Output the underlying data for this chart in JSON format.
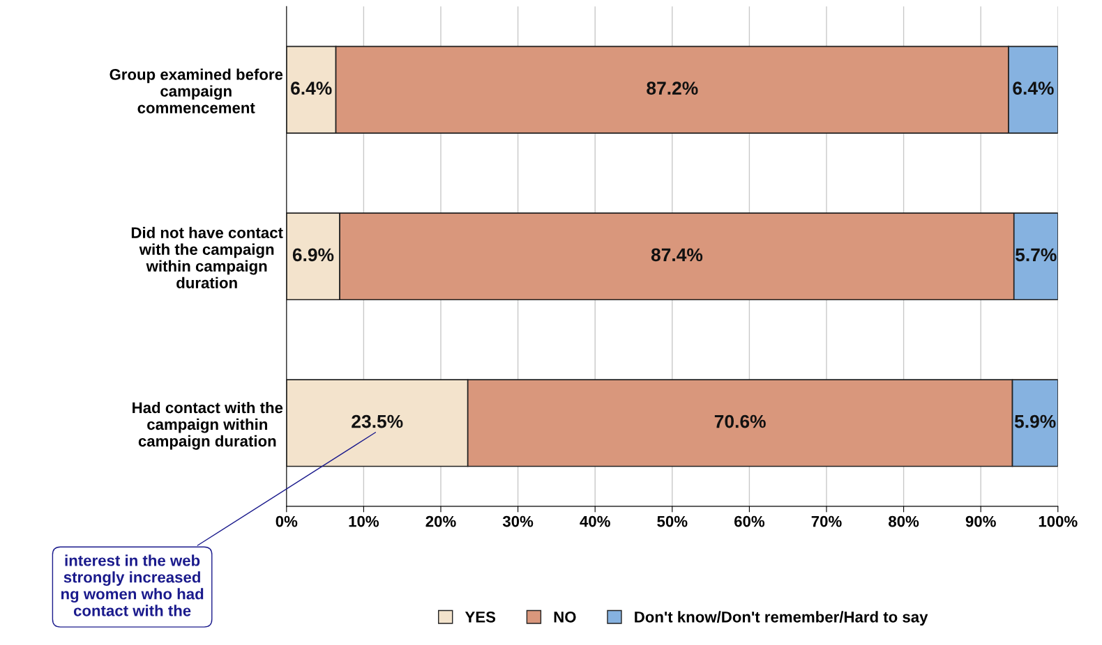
{
  "chart_data": {
    "type": "bar",
    "orientation": "horizontal",
    "stacked": true,
    "categories": [
      "Group examined before\ncampaign\ncommencement",
      "Did not have contact\nwith the campaign\nwithin campaign\nduration",
      "Had contact with the\ncampaign within\ncampaign duration"
    ],
    "series": [
      {
        "name": "YES",
        "color": "#f3e3cc",
        "values": [
          6.4,
          6.9,
          23.5
        ],
        "value_labels": [
          "6.4%",
          "6.9%",
          "23.5%"
        ]
      },
      {
        "name": "NO",
        "color": "#d9977c",
        "values": [
          87.2,
          87.4,
          70.6
        ],
        "value_labels": [
          "87.2%",
          "87.4%",
          "70.6%"
        ]
      },
      {
        "name": "Don't know/Don't remember/Hard to say",
        "color": "#86b2e0",
        "values": [
          6.4,
          5.7,
          5.9
        ],
        "value_labels": [
          "6.4%",
          "5.7%",
          "5.9%"
        ]
      }
    ],
    "xlim": [
      0,
      100
    ],
    "xticks": [
      {
        "value": 0,
        "label": "0%"
      },
      {
        "value": 10,
        "label": "10%"
      },
      {
        "value": 20,
        "label": "20%"
      },
      {
        "value": 30,
        "label": "30%"
      },
      {
        "value": 40,
        "label": "40%"
      },
      {
        "value": 50,
        "label": "50%"
      },
      {
        "value": 60,
        "label": "60%"
      },
      {
        "value": 70,
        "label": "70%"
      },
      {
        "value": 80,
        "label": "80%"
      },
      {
        "value": 90,
        "label": "90%"
      },
      {
        "value": 100,
        "label": "100%"
      }
    ],
    "grid": "x",
    "legend": "bottom",
    "annotations": [
      "interest in the web\nstrongly increased\nng women who had\ncontact with the"
    ]
  }
}
